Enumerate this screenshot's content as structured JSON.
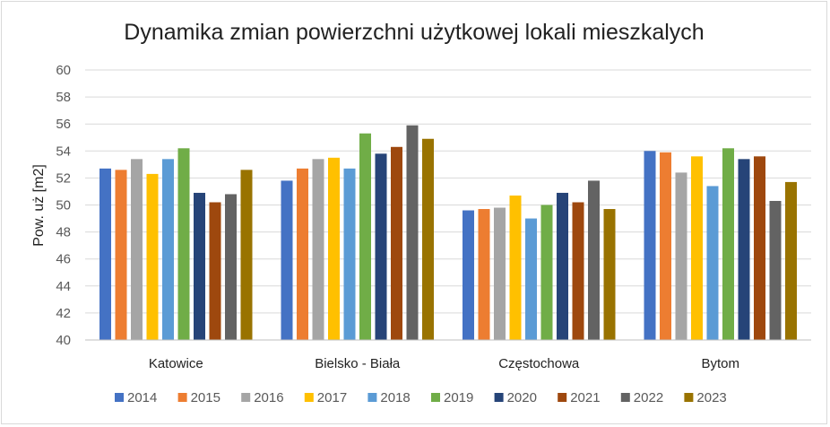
{
  "chart_data": {
    "type": "bar",
    "title": "Dynamika zmian powierzchni użytkowej lokali mieszkalych",
    "xlabel": "",
    "ylabel": "Pow. uż [m2]",
    "ylim": [
      40,
      60
    ],
    "yticks": [
      40,
      42,
      44,
      46,
      48,
      50,
      52,
      54,
      56,
      58,
      60
    ],
    "grid": true,
    "legend_position": "bottom",
    "categories": [
      "Katowice",
      "Bielsko - Biała",
      "Częstochowa",
      "Bytom"
    ],
    "series": [
      {
        "name": "2014",
        "color": "#4472c4",
        "values": [
          52.7,
          51.8,
          49.6,
          54.0
        ]
      },
      {
        "name": "2015",
        "color": "#ed7d31",
        "values": [
          52.6,
          52.7,
          49.7,
          53.9
        ]
      },
      {
        "name": "2016",
        "color": "#a5a5a5",
        "values": [
          53.4,
          53.4,
          49.8,
          52.4
        ]
      },
      {
        "name": "2017",
        "color": "#ffc000",
        "values": [
          52.3,
          53.5,
          50.7,
          53.6
        ]
      },
      {
        "name": "2018",
        "color": "#5b9bd5",
        "values": [
          53.4,
          52.7,
          49.0,
          51.4
        ]
      },
      {
        "name": "2019",
        "color": "#70ad47",
        "values": [
          54.2,
          55.3,
          50.0,
          54.2
        ]
      },
      {
        "name": "2020",
        "color": "#264478",
        "values": [
          50.9,
          53.8,
          50.9,
          53.4
        ]
      },
      {
        "name": "2021",
        "color": "#9e480e",
        "values": [
          50.2,
          54.3,
          50.2,
          53.6
        ]
      },
      {
        "name": "2022",
        "color": "#636363",
        "values": [
          50.8,
          55.9,
          51.8,
          50.3
        ]
      },
      {
        "name": "2023",
        "color": "#997300",
        "values": [
          52.6,
          54.9,
          49.7,
          51.7
        ]
      }
    ]
  }
}
